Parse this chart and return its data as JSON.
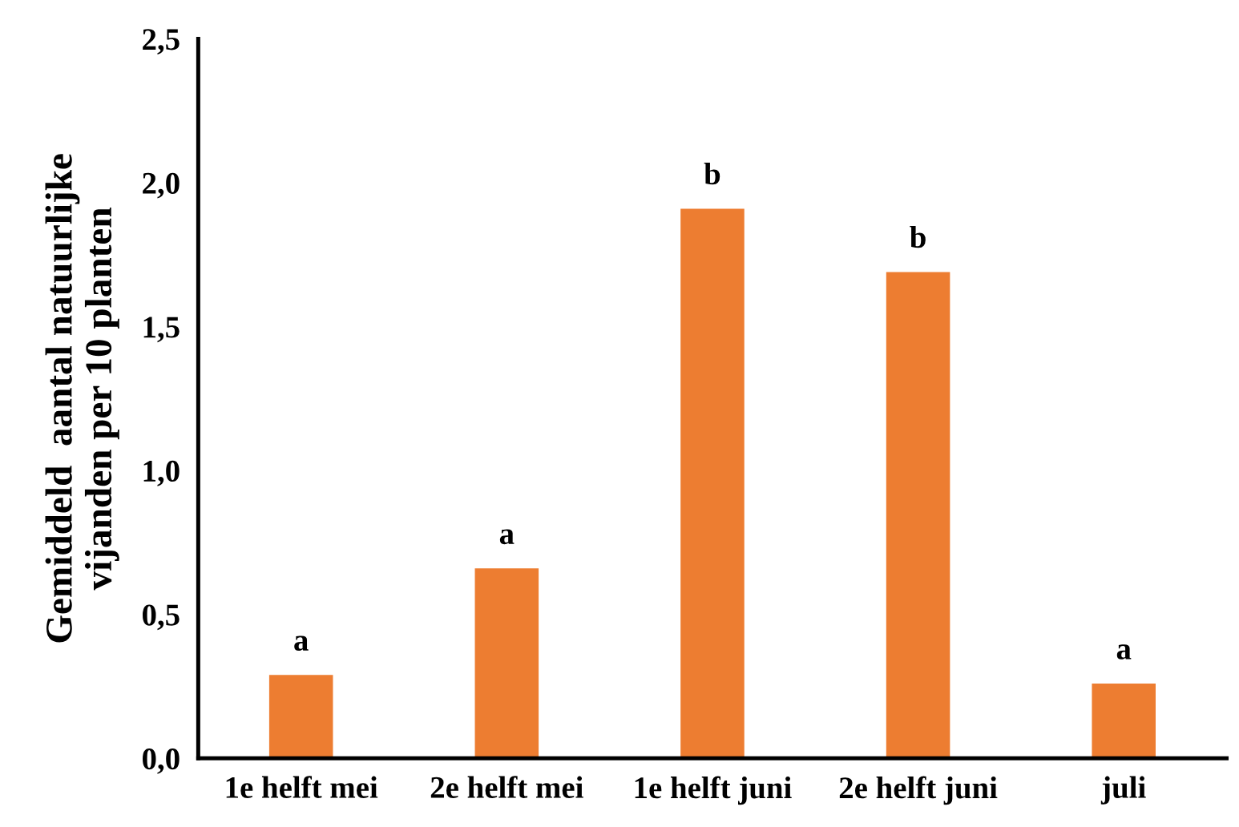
{
  "chart_data": {
    "type": "bar",
    "ylabel": "Gemiddeld  aantal natuurlijke\nvijanden per 10 planten",
    "categories": [
      "1e helft mei",
      "2e helft mei",
      "1e helft juni",
      "2e helft juni",
      "juli"
    ],
    "values": [
      0.29,
      0.66,
      1.91,
      1.69,
      0.26
    ],
    "color": "#ed7d31",
    "ylim": [
      0,
      2.5
    ],
    "yticks": [
      {
        "value": 0,
        "label": "0,0"
      },
      {
        "value": 0.5,
        "label": "0,5"
      },
      {
        "value": 1.0,
        "label": "1,0"
      },
      {
        "value": 1.5,
        "label": "1,5"
      },
      {
        "value": 2.0,
        "label": "2,0"
      },
      {
        "value": 2.5,
        "label": "2,5"
      }
    ],
    "grid": false,
    "annotations": [
      {
        "text": "a",
        "x": "1e helft mei",
        "y": 0.29
      },
      {
        "text": "a",
        "x": "2e helft mei",
        "y": 0.66
      },
      {
        "text": "b",
        "x": "1e helft juni",
        "y": 1.91
      },
      {
        "text": "b",
        "x": "2e helft juni",
        "y": 1.69
      },
      {
        "text": "a",
        "x": "juli",
        "y": 0.26
      }
    ]
  }
}
